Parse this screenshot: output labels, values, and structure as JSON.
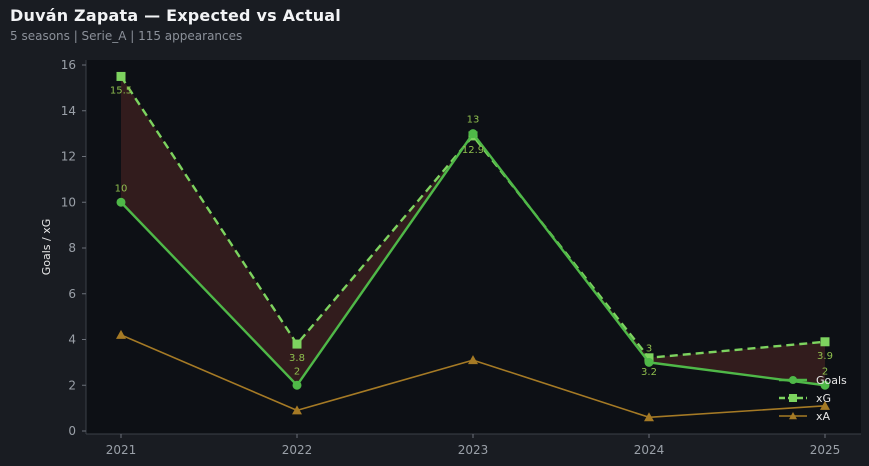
{
  "header": {
    "title": "Duván Zapata — Expected vs Actual",
    "subtitle": "5 seasons | Serie_A | 115 appearances"
  },
  "colors": {
    "goals": "#4fb848",
    "xg": "#7dd35f",
    "xa": "#a57a25",
    "label": "#8fbf4e",
    "fill": "#3a1f1f",
    "plot_bg": "#0d1015",
    "page_bg": "#191c22"
  },
  "chart_data": {
    "type": "line",
    "categories": [
      "2021",
      "2022",
      "2023",
      "2024",
      "2025"
    ],
    "ylabel": "Goals / xG",
    "xlabel": "",
    "ylim": [
      0,
      16
    ],
    "yticks": [
      "0",
      "2",
      "4",
      "6",
      "8",
      "10",
      "12",
      "14",
      "16"
    ],
    "grid": false,
    "legend": "lower-right",
    "series": [
      {
        "name": "Goals",
        "values": [
          10,
          2,
          13,
          3,
          2
        ],
        "labels": [
          "10",
          "2",
          "13",
          "3",
          "2"
        ],
        "marker": "circle",
        "style": "solid"
      },
      {
        "name": "xG",
        "values": [
          15.5,
          3.8,
          12.9,
          3.2,
          3.9
        ],
        "labels": [
          "15.5",
          "3.8",
          "12.9",
          "3.2",
          "3.9"
        ],
        "marker": "square",
        "style": "dashed"
      },
      {
        "name": "xA",
        "values": [
          4.2,
          0.9,
          3.1,
          0.6,
          1.1
        ],
        "marker": "triangle",
        "style": "solid"
      }
    ],
    "shaded_region": "between Goals and xG"
  }
}
